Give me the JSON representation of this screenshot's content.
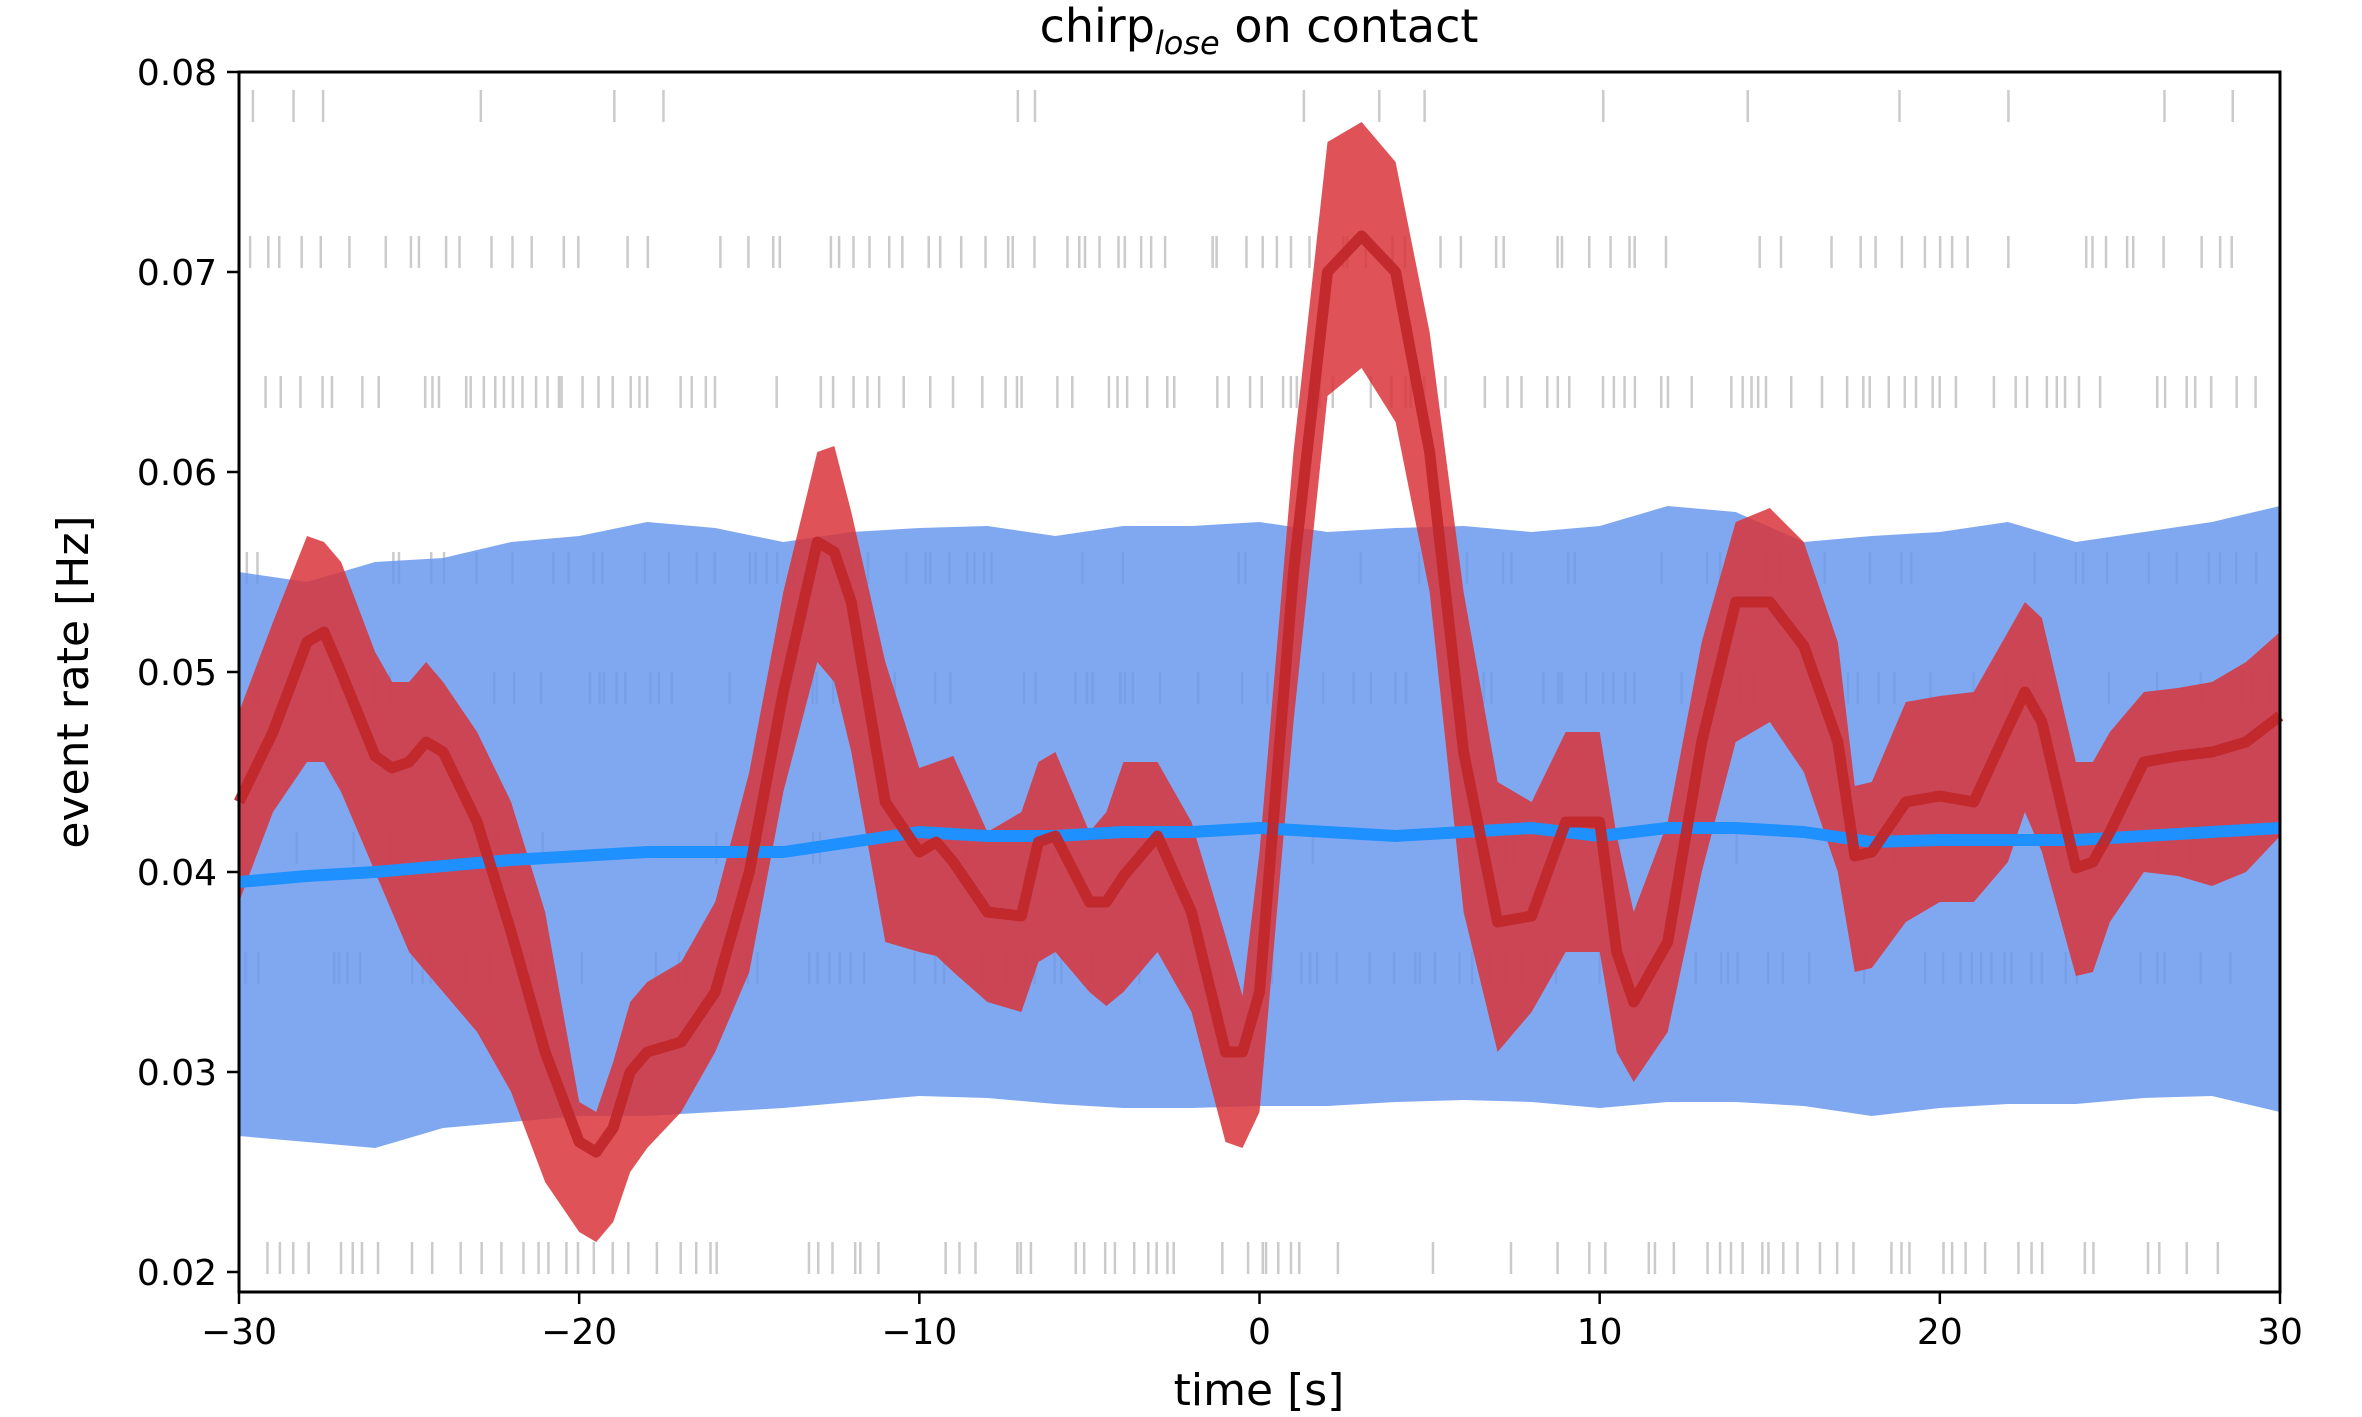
{
  "chart_data": {
    "type": "line",
    "title": {
      "main": "chirp",
      "subscript": "lose",
      "suffix": " on contact"
    },
    "xlabel": "time [s]",
    "ylabel": "event rate [Hz]",
    "xlim": [
      -30,
      30
    ],
    "ylim": [
      0.019,
      0.08
    ],
    "xticks": [
      -30,
      -20,
      -10,
      0,
      10,
      20,
      30
    ],
    "xtick_labels": [
      "−30",
      "−20",
      "−10",
      "0",
      "10",
      "20",
      "30"
    ],
    "yticks": [
      0.02,
      0.03,
      0.04,
      0.05,
      0.06,
      0.07,
      0.08
    ],
    "ytick_labels": [
      "0.02",
      "0.03",
      "0.04",
      "0.05",
      "0.06",
      "0.07",
      "0.08"
    ],
    "grid": false,
    "colors": {
      "observed": "#c0282b",
      "observed_band": "#d9343a",
      "baseline": "#1e90ff",
      "baseline_band": "#6495ed",
      "raster": "#a0a0a0"
    },
    "series": [
      {
        "role": "observed",
        "x": [
          -30,
          -29,
          -28,
          -27.5,
          -27,
          -26,
          -25.5,
          -25,
          -24.5,
          -24,
          -23,
          -22,
          -21,
          -20,
          -19.5,
          -19,
          -18.5,
          -18,
          -17,
          -16,
          -15,
          -14,
          -13,
          -12.5,
          -12,
          -11,
          -10,
          -9.5,
          -9,
          -8,
          -7,
          -6.5,
          -6,
          -5,
          -4.5,
          -4,
          -3,
          -2,
          -1,
          -0.5,
          0,
          1,
          2,
          3,
          4,
          5,
          6,
          7,
          8,
          9,
          10,
          10.5,
          11,
          12,
          13,
          14,
          15,
          16,
          17,
          17.5,
          18,
          19,
          20,
          21,
          22,
          22.5,
          23,
          24,
          24.5,
          25,
          26,
          27,
          28,
          29,
          30
        ],
        "y": [
          0.0435,
          0.047,
          0.0515,
          0.052,
          0.05,
          0.0458,
          0.0452,
          0.0455,
          0.0465,
          0.046,
          0.0425,
          0.037,
          0.031,
          0.0265,
          0.026,
          0.0272,
          0.03,
          0.031,
          0.0315,
          0.034,
          0.04,
          0.049,
          0.0565,
          0.056,
          0.0535,
          0.0435,
          0.041,
          0.0415,
          0.0405,
          0.038,
          0.0378,
          0.0415,
          0.0418,
          0.0385,
          0.0385,
          0.0398,
          0.0418,
          0.038,
          0.031,
          0.031,
          0.034,
          0.055,
          0.07,
          0.0718,
          0.07,
          0.061,
          0.046,
          0.0375,
          0.0378,
          0.0425,
          0.0425,
          0.036,
          0.0335,
          0.0365,
          0.0465,
          0.0535,
          0.0535,
          0.0513,
          0.0465,
          0.0408,
          0.041,
          0.0435,
          0.0438,
          0.0435,
          0.0472,
          0.049,
          0.0475,
          0.0402,
          0.0405,
          0.042,
          0.0455,
          0.0458,
          0.046,
          0.0465,
          0.0478
        ],
        "lower": [
          0.0385,
          0.043,
          0.0455,
          0.0455,
          0.044,
          0.04,
          0.038,
          0.036,
          0.035,
          0.034,
          0.032,
          0.029,
          0.0245,
          0.022,
          0.0215,
          0.0225,
          0.025,
          0.0262,
          0.028,
          0.031,
          0.035,
          0.044,
          0.0505,
          0.0495,
          0.046,
          0.0365,
          0.036,
          0.0358,
          0.035,
          0.0335,
          0.033,
          0.0355,
          0.036,
          0.034,
          0.0333,
          0.034,
          0.036,
          0.033,
          0.0265,
          0.0262,
          0.028,
          0.0475,
          0.0638,
          0.0652,
          0.0625,
          0.054,
          0.038,
          0.031,
          0.033,
          0.036,
          0.036,
          0.031,
          0.0295,
          0.032,
          0.04,
          0.0465,
          0.0475,
          0.045,
          0.04,
          0.035,
          0.0352,
          0.0375,
          0.0385,
          0.0385,
          0.0405,
          0.043,
          0.041,
          0.0348,
          0.035,
          0.0375,
          0.04,
          0.0398,
          0.0393,
          0.04,
          0.0418
        ],
        "upper": [
          0.048,
          0.0525,
          0.0568,
          0.0565,
          0.0555,
          0.051,
          0.0495,
          0.0495,
          0.0505,
          0.0495,
          0.047,
          0.0435,
          0.038,
          0.0285,
          0.028,
          0.0305,
          0.0335,
          0.0345,
          0.0355,
          0.0385,
          0.045,
          0.054,
          0.061,
          0.0613,
          0.058,
          0.0505,
          0.0452,
          0.0455,
          0.0458,
          0.042,
          0.043,
          0.0455,
          0.046,
          0.042,
          0.043,
          0.0455,
          0.0455,
          0.0425,
          0.0368,
          0.0338,
          0.041,
          0.061,
          0.0765,
          0.0775,
          0.0755,
          0.067,
          0.054,
          0.0445,
          0.0435,
          0.047,
          0.047,
          0.0418,
          0.038,
          0.0425,
          0.0515,
          0.0575,
          0.0582,
          0.0565,
          0.0515,
          0.0443,
          0.0445,
          0.0485,
          0.0488,
          0.049,
          0.052,
          0.0535,
          0.0527,
          0.0455,
          0.0455,
          0.047,
          0.049,
          0.0492,
          0.0495,
          0.0505,
          0.052
        ]
      },
      {
        "role": "baseline",
        "x": [
          -30,
          -28,
          -26,
          -24,
          -22,
          -20,
          -18,
          -16,
          -14,
          -12,
          -10,
          -8,
          -6,
          -4,
          -2,
          0,
          2,
          4,
          6,
          8,
          10,
          12,
          14,
          16,
          18,
          20,
          22,
          24,
          26,
          28,
          30
        ],
        "y": [
          0.0395,
          0.0398,
          0.04,
          0.0403,
          0.0406,
          0.0408,
          0.041,
          0.041,
          0.041,
          0.0415,
          0.042,
          0.0418,
          0.0418,
          0.042,
          0.042,
          0.0422,
          0.042,
          0.0418,
          0.042,
          0.0422,
          0.0418,
          0.0422,
          0.0422,
          0.042,
          0.0415,
          0.0416,
          0.0416,
          0.0416,
          0.0418,
          0.042,
          0.0422
        ],
        "lower": [
          0.0268,
          0.0265,
          0.0262,
          0.0272,
          0.0275,
          0.0278,
          0.0278,
          0.028,
          0.0282,
          0.0285,
          0.0288,
          0.0287,
          0.0284,
          0.0282,
          0.0282,
          0.0283,
          0.0283,
          0.0285,
          0.0286,
          0.0285,
          0.0282,
          0.0285,
          0.0285,
          0.0283,
          0.0278,
          0.0282,
          0.0284,
          0.0284,
          0.0287,
          0.0288,
          0.028
        ],
        "upper": [
          0.055,
          0.0545,
          0.0555,
          0.0557,
          0.0565,
          0.0568,
          0.0575,
          0.0572,
          0.0565,
          0.057,
          0.0572,
          0.0573,
          0.0568,
          0.0573,
          0.0573,
          0.0575,
          0.057,
          0.0572,
          0.0573,
          0.057,
          0.0573,
          0.0583,
          0.058,
          0.0565,
          0.0568,
          0.057,
          0.0575,
          0.0565,
          0.057,
          0.0575,
          0.0583
        ]
      }
    ],
    "raster_rows": [
      0.0207,
      0.0352,
      0.0412,
      0.0492,
      0.0552,
      0.064,
      0.071,
      0.0783
    ],
    "raster_density": [
      0.45,
      0.4,
      0.1,
      0.3,
      0.3,
      0.55,
      0.4,
      0.1
    ]
  }
}
